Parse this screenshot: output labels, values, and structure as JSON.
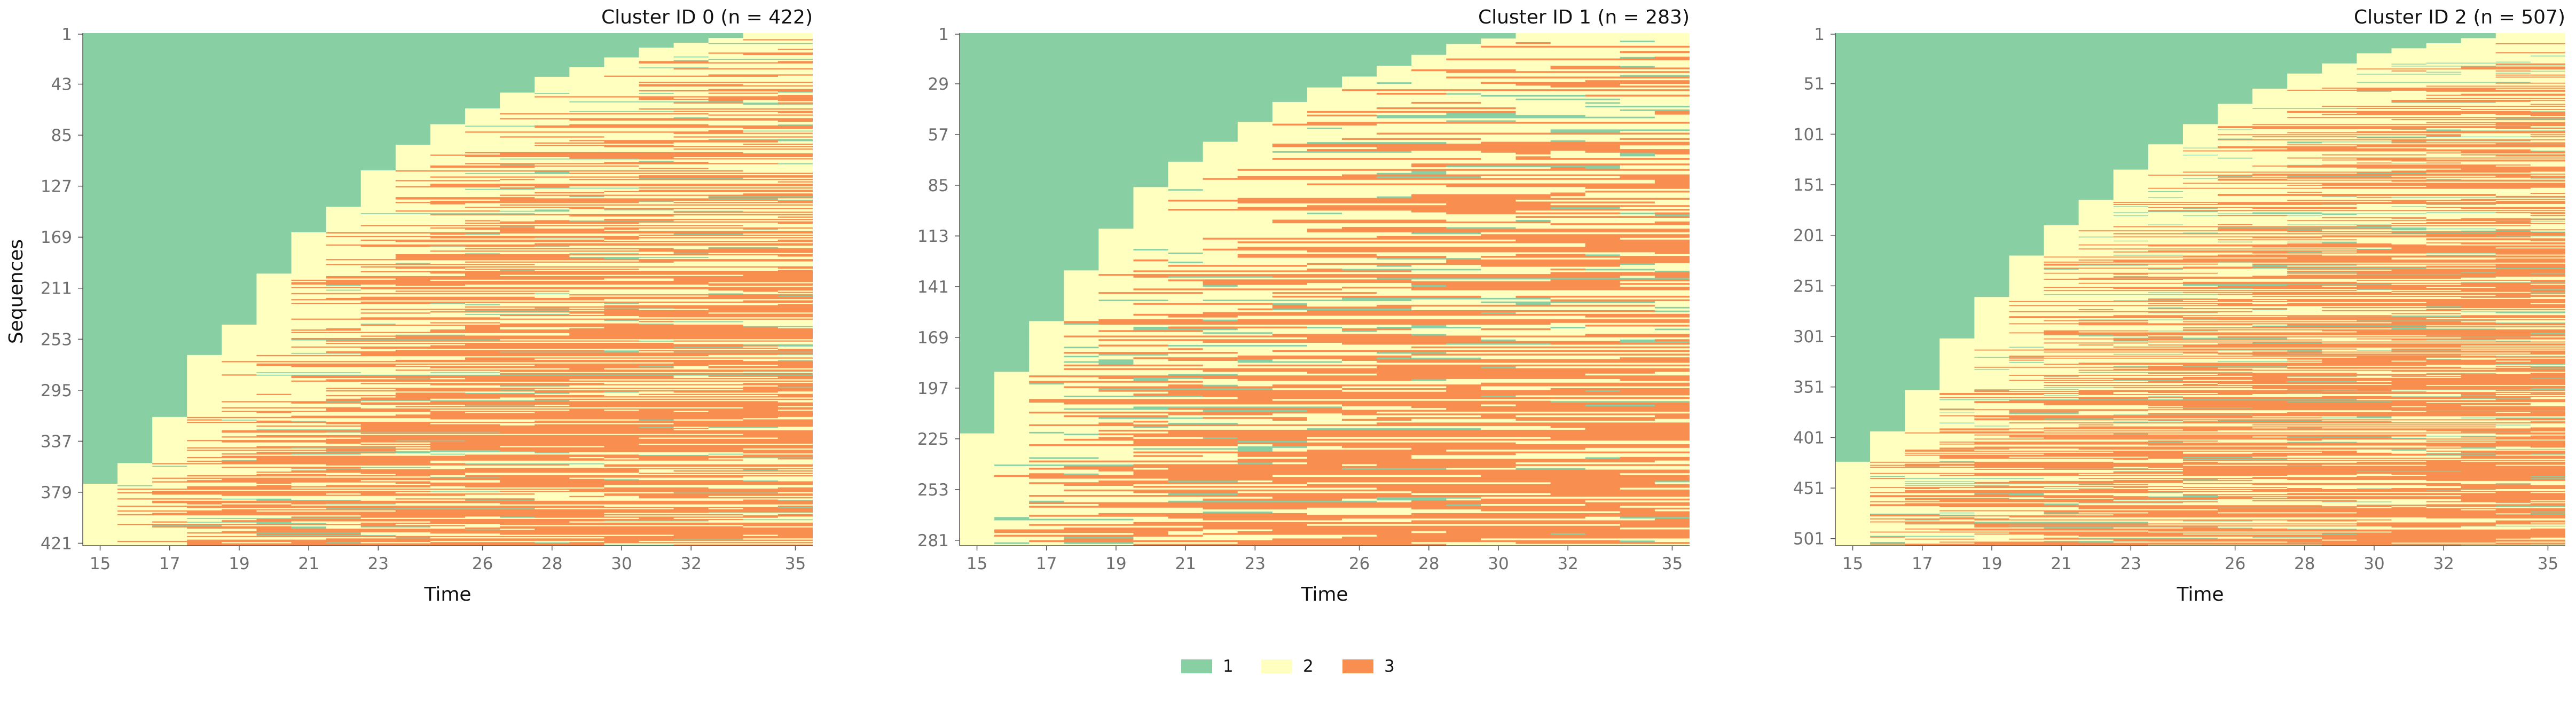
{
  "chart_data": [
    {
      "type": "heatmap",
      "title": "Cluster ID 0 (n = 422)",
      "xlabel": "Time",
      "ylabel": "Sequences",
      "n_sequences": 422,
      "x_range": [
        14.5,
        35.5
      ],
      "x_ticks": [
        "15",
        "17",
        "19",
        "21",
        "23",
        "26",
        "28",
        "30",
        "32",
        "35"
      ],
      "y_ticks": [
        "1",
        "43",
        "85",
        "127",
        "169",
        "211",
        "253",
        "295",
        "337",
        "379",
        "421"
      ],
      "states": [
        1,
        2,
        3
      ],
      "start_times_share": [
        [
          15,
          0.12
        ],
        [
          16,
          0.04
        ],
        [
          17,
          0.09
        ],
        [
          18,
          0.12
        ],
        [
          19,
          0.06
        ],
        [
          20,
          0.1
        ],
        [
          21,
          0.08
        ],
        [
          22,
          0.05
        ],
        [
          23,
          0.07
        ],
        [
          24,
          0.05
        ],
        [
          25,
          0.04
        ],
        [
          26,
          0.03
        ],
        [
          27,
          0.03
        ],
        [
          28,
          0.03
        ],
        [
          29,
          0.02
        ],
        [
          30,
          0.02
        ],
        [
          31,
          0.02
        ],
        [
          32,
          0.01
        ],
        [
          33,
          0.01
        ],
        [
          34,
          0.01
        ],
        [
          35,
          0.02
        ]
      ],
      "green_return_rate": 0.05
    },
    {
      "type": "heatmap",
      "title": "Cluster ID 1 (n = 283)",
      "xlabel": "Time",
      "ylabel": "",
      "n_sequences": 283,
      "x_range": [
        14.5,
        35.5
      ],
      "x_ticks": [
        "15",
        "17",
        "19",
        "21",
        "23",
        "26",
        "28",
        "30",
        "32",
        "35"
      ],
      "y_ticks": [
        "1",
        "29",
        "57",
        "85",
        "113",
        "141",
        "169",
        "197",
        "225",
        "253",
        "281"
      ],
      "states": [
        1,
        2,
        3
      ],
      "start_times_share": [
        [
          15,
          0.22
        ],
        [
          16,
          0.12
        ],
        [
          17,
          0.1
        ],
        [
          18,
          0.1
        ],
        [
          19,
          0.08
        ],
        [
          20,
          0.08
        ],
        [
          21,
          0.05
        ],
        [
          22,
          0.04
        ],
        [
          23,
          0.04
        ],
        [
          24,
          0.04
        ],
        [
          25,
          0.03
        ],
        [
          26,
          0.02
        ],
        [
          27,
          0.02
        ],
        [
          28,
          0.02
        ],
        [
          29,
          0.02
        ],
        [
          30,
          0.01
        ],
        [
          31,
          0.01
        ]
      ],
      "green_return_rate": 0.07
    },
    {
      "type": "heatmap",
      "title": "Cluster ID 2 (n = 507)",
      "xlabel": "Time",
      "ylabel": "",
      "n_sequences": 507,
      "x_range": [
        14.5,
        35.5
      ],
      "x_ticks": [
        "15",
        "17",
        "19",
        "21",
        "23",
        "26",
        "28",
        "30",
        "32",
        "35"
      ],
      "y_ticks": [
        "1",
        "51",
        "101",
        "151",
        "201",
        "251",
        "301",
        "351",
        "401",
        "451",
        "501"
      ],
      "states": [
        1,
        2,
        3
      ],
      "start_times_share": [
        [
          15,
          0.16
        ],
        [
          16,
          0.06
        ],
        [
          17,
          0.08
        ],
        [
          18,
          0.1
        ],
        [
          19,
          0.08
        ],
        [
          20,
          0.08
        ],
        [
          21,
          0.06
        ],
        [
          22,
          0.05
        ],
        [
          23,
          0.06
        ],
        [
          24,
          0.05
        ],
        [
          25,
          0.04
        ],
        [
          26,
          0.04
        ],
        [
          27,
          0.03
        ],
        [
          28,
          0.03
        ],
        [
          29,
          0.02
        ],
        [
          30,
          0.02
        ],
        [
          31,
          0.01
        ],
        [
          32,
          0.01
        ],
        [
          33,
          0.01
        ],
        [
          34,
          0.01
        ]
      ],
      "green_return_rate": 0.09
    }
  ],
  "legend": {
    "placement": "bottom-center",
    "items": [
      {
        "label": "1",
        "color": "#88cfa4"
      },
      {
        "label": "2",
        "color": "#ffffbf"
      },
      {
        "label": "3",
        "color": "#f88e4f"
      }
    ]
  },
  "colors": {
    "state_1": "#88cfa4",
    "state_2": "#ffffbf",
    "state_3": "#f88e4f",
    "tick_text": "#6f6f6f",
    "title_text": "#111111"
  }
}
